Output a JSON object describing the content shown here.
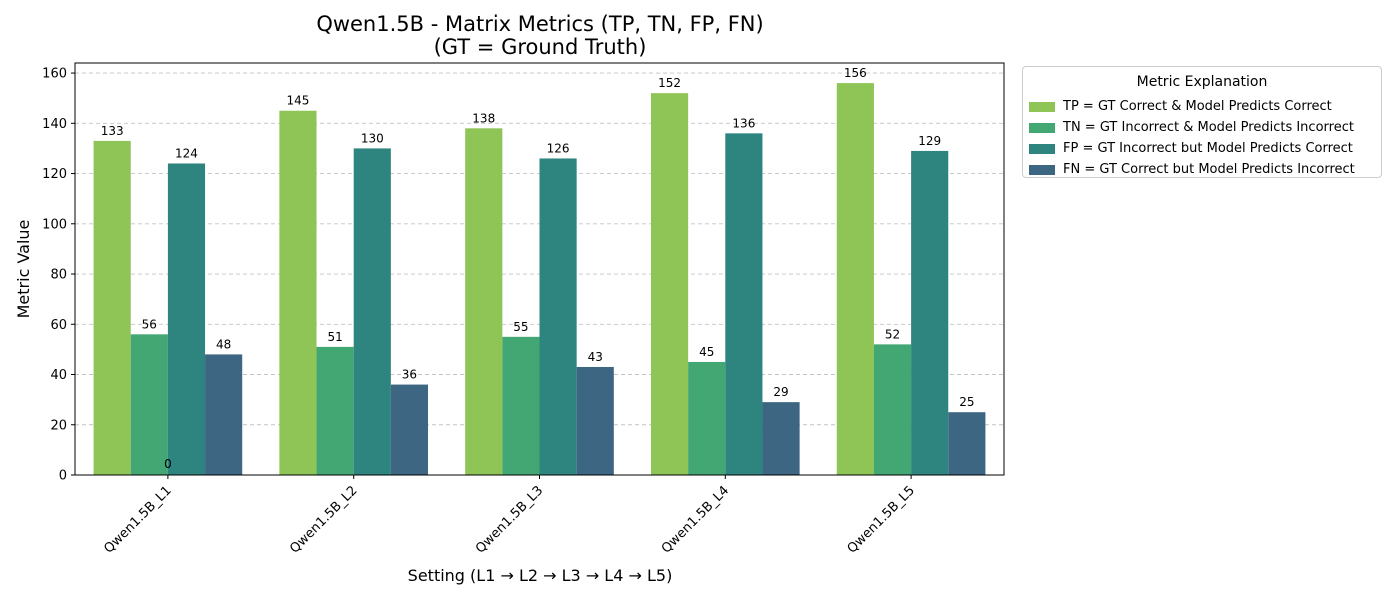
{
  "chart_data": {
    "type": "bar",
    "title": "Qwen1.5B - Matrix Metrics (TP, TN, FP, FN)",
    "subtitle": "(GT = Ground Truth)",
    "xlabel": "Setting (L1 → L2 → L3 → L4 → L5)",
    "ylabel": "Metric Value",
    "ylim": [
      0,
      164
    ],
    "yticks": [
      0,
      20,
      40,
      60,
      80,
      100,
      120,
      140,
      160
    ],
    "grid": true,
    "categories": [
      "Qwen1.5B_L1",
      "Qwen1.5B_L2",
      "Qwen1.5B_L3",
      "Qwen1.5B_L4",
      "Qwen1.5B_L5"
    ],
    "series": [
      {
        "name": "TP",
        "values": [
          133,
          145,
          138,
          152,
          156
        ],
        "color": "#8fc456"
      },
      {
        "name": "TN",
        "values": [
          56,
          51,
          55,
          45,
          52
        ],
        "color": "#43a773"
      },
      {
        "name": "FP",
        "values": [
          124,
          130,
          126,
          136,
          129
        ],
        "color": "#2e847f"
      },
      {
        "name": "FN",
        "values": [
          48,
          36,
          43,
          29,
          25
        ],
        "color": "#3d6683"
      }
    ],
    "annotations": [
      {
        "text": "0",
        "category": "Qwen1.5B_L1",
        "value": 0
      }
    ],
    "legend": {
      "title": "Metric Explanation",
      "placement": "outside-top-right",
      "entries": [
        "TP = GT Correct & Model Predicts Correct",
        "TN = GT Incorrect & Model Predicts Incorrect",
        "FP = GT Incorrect but Model Predicts Correct",
        "FN = GT Correct but Model Predicts Incorrect"
      ]
    }
  }
}
